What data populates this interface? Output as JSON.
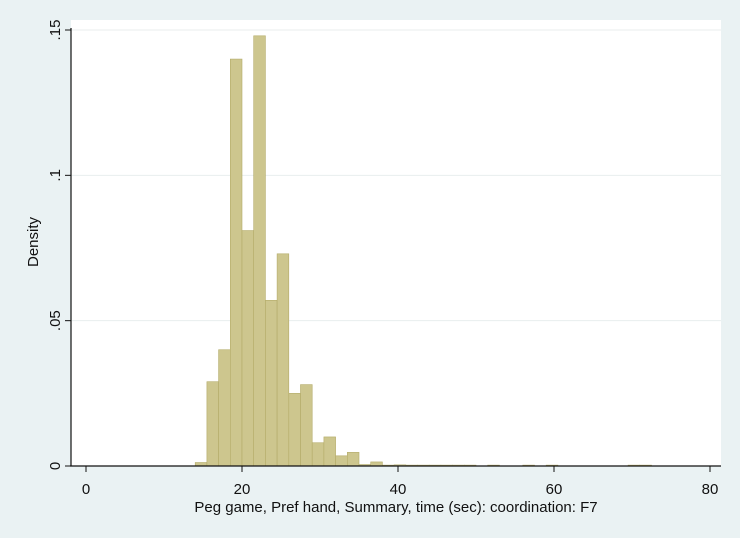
{
  "chart_data": {
    "type": "bar",
    "title": "",
    "xlabel": "Peg game, Pref hand, Summary, time (sec): coordination: F7",
    "ylabel": "Density",
    "xlim": [
      0,
      80
    ],
    "ylim": [
      0,
      0.15
    ],
    "x_ticks": [
      {
        "value": 0,
        "label": "0"
      },
      {
        "value": 20,
        "label": "20"
      },
      {
        "value": 40,
        "label": "40"
      },
      {
        "value": 60,
        "label": "60"
      },
      {
        "value": 80,
        "label": "80"
      }
    ],
    "y_ticks": [
      {
        "value": 0,
        "label": "0"
      },
      {
        "value": 0.05,
        "label": ".05"
      },
      {
        "value": 0.1,
        "label": ".1"
      },
      {
        "value": 0.15,
        "label": ".15"
      }
    ],
    "grid": "horizontal",
    "bin_width": 1.5,
    "bins": [
      {
        "x_start": 14.0,
        "density": 0.0012
      },
      {
        "x_start": 15.5,
        "density": 0.029
      },
      {
        "x_start": 17.0,
        "density": 0.04
      },
      {
        "x_start": 18.5,
        "density": 0.14
      },
      {
        "x_start": 20.0,
        "density": 0.081
      },
      {
        "x_start": 21.5,
        "density": 0.148
      },
      {
        "x_start": 23.0,
        "density": 0.057
      },
      {
        "x_start": 24.5,
        "density": 0.073
      },
      {
        "x_start": 26.0,
        "density": 0.025
      },
      {
        "x_start": 27.5,
        "density": 0.028
      },
      {
        "x_start": 29.0,
        "density": 0.008
      },
      {
        "x_start": 30.5,
        "density": 0.01
      },
      {
        "x_start": 32.0,
        "density": 0.0035
      },
      {
        "x_start": 33.5,
        "density": 0.0047
      },
      {
        "x_start": 35.0,
        "density": 0.0005
      },
      {
        "x_start": 36.5,
        "density": 0.0014
      },
      {
        "x_start": 38.0,
        "density": 0.0003
      },
      {
        "x_start": 39.5,
        "density": 0.0004
      },
      {
        "x_start": 41.0,
        "density": 0.0003
      },
      {
        "x_start": 42.5,
        "density": 0.0003
      },
      {
        "x_start": 44.0,
        "density": 0.0003
      },
      {
        "x_start": 45.5,
        "density": 0.0003
      },
      {
        "x_start": 47.0,
        "density": 0.0003
      },
      {
        "x_start": 48.5,
        "density": 0.0003
      },
      {
        "x_start": 51.5,
        "density": 0.0003
      },
      {
        "x_start": 56.0,
        "density": 0.0003
      },
      {
        "x_start": 59.0,
        "density": 0.0003
      },
      {
        "x_start": 69.5,
        "density": 0.0003
      },
      {
        "x_start": 71.0,
        "density": 0.0003
      }
    ],
    "colors": {
      "bar_fill": "#cdc68e",
      "bar_stroke": "#b3ab68",
      "plot_background": "#ffffff",
      "page_background": "#eaf2f3",
      "gridline": "#e8eeee",
      "axis": "#111111"
    }
  }
}
